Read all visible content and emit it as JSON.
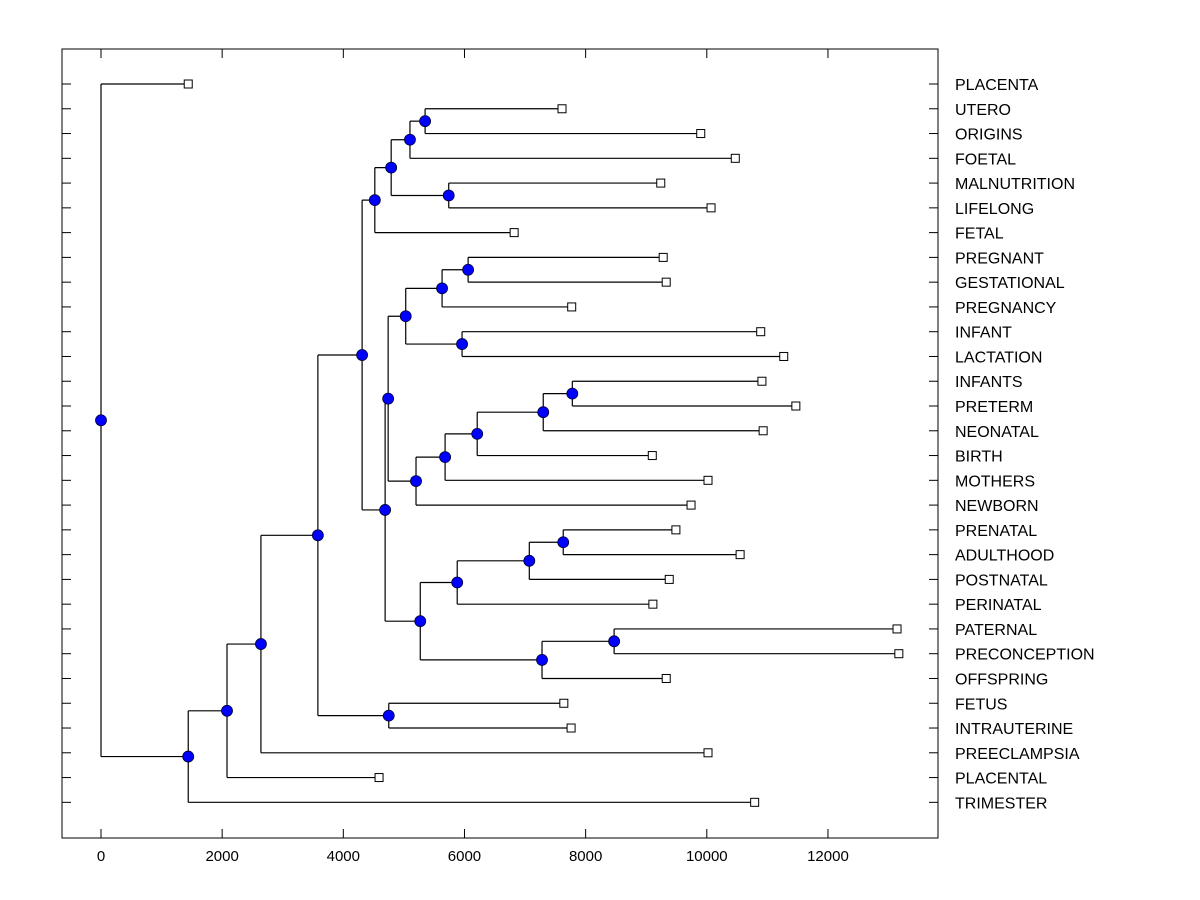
{
  "chart_data": {
    "type": "dendrogram",
    "title": "",
    "xlabel": "",
    "ylabel": "",
    "xlim": [
      -650,
      13800
    ],
    "x_ticks": [
      0,
      2000,
      4000,
      6000,
      8000,
      10000,
      12000
    ],
    "x_tick_labels": [
      "0",
      "2000",
      "4000",
      "6000",
      "8000",
      "10000",
      "12000"
    ],
    "orientation": "horizontal",
    "leaf_label_position": "right",
    "node_color": "#0000ff",
    "leaf_marker": "open-square",
    "leaves": [
      {
        "label": "PLACENTA",
        "value": 1440
      },
      {
        "label": "UTERO",
        "value": 7610
      },
      {
        "label": "ORIGINS",
        "value": 9900
      },
      {
        "label": "FOETAL",
        "value": 10470
      },
      {
        "label": "MALNUTRITION",
        "value": 9240
      },
      {
        "label": "LIFELONG",
        "value": 10070
      },
      {
        "label": "FETAL",
        "value": 6820
      },
      {
        "label": "PREGNANT",
        "value": 9280
      },
      {
        "label": "GESTATIONAL",
        "value": 9330
      },
      {
        "label": "PREGNANCY",
        "value": 7770
      },
      {
        "label": "INFANT",
        "value": 10890
      },
      {
        "label": "LACTATION",
        "value": 11270
      },
      {
        "label": "INFANTS",
        "value": 10910
      },
      {
        "label": "PRETERM",
        "value": 11470
      },
      {
        "label": "NEONATAL",
        "value": 10930
      },
      {
        "label": "BIRTH",
        "value": 9100
      },
      {
        "label": "MOTHERS",
        "value": 10020
      },
      {
        "label": "NEWBORN",
        "value": 9740
      },
      {
        "label": "PRENATAL",
        "value": 9490
      },
      {
        "label": "ADULTHOOD",
        "value": 10550
      },
      {
        "label": "POSTNATAL",
        "value": 9380
      },
      {
        "label": "PERINATAL",
        "value": 9110
      },
      {
        "label": "PATERNAL",
        "value": 13140
      },
      {
        "label": "PRECONCEPTION",
        "value": 13170
      },
      {
        "label": "OFFSPRING",
        "value": 9330
      },
      {
        "label": "FETUS",
        "value": 7640
      },
      {
        "label": "INTRAUTERINE",
        "value": 7760
      },
      {
        "label": "PREECLAMPSIA",
        "value": 10020
      },
      {
        "label": "PLACENTAL",
        "value": 4590
      },
      {
        "label": "TRIMESTER",
        "value": 10790
      }
    ],
    "tree": {
      "value": 0,
      "children": [
        {
          "leaf": "PLACENTA"
        },
        {
          "value": 1440,
          "children": [
            {
              "value": 2080,
              "children": [
                {
                  "value": 2640,
                  "children": [
                    {
                      "value": 3580,
                      "children": [
                        {
                          "value": 4310,
                          "children": [
                            {
                              "value": 4520,
                              "children": [
                                {
                                  "value": 4790,
                                  "children": [
                                    {
                                      "value": 5100,
                                      "children": [
                                        {
                                          "value": 5350,
                                          "children": [
                                            {
                                              "leaf": "UTERO"
                                            },
                                            {
                                              "leaf": "ORIGINS"
                                            }
                                          ]
                                        },
                                        {
                                          "leaf": "FOETAL"
                                        }
                                      ]
                                    },
                                    {
                                      "value": 5740,
                                      "children": [
                                        {
                                          "leaf": "MALNUTRITION"
                                        },
                                        {
                                          "leaf": "LIFELONG"
                                        }
                                      ]
                                    }
                                  ]
                                },
                                {
                                  "leaf": "FETAL"
                                }
                              ]
                            },
                            {
                              "value": 4690,
                              "children": [
                                {
                                  "value": 4740,
                                  "children": [
                                    {
                                      "value": 5030,
                                      "children": [
                                        {
                                          "value": 5630,
                                          "children": [
                                            {
                                              "value": 6060,
                                              "children": [
                                                {
                                                  "leaf": "PREGNANT"
                                                },
                                                {
                                                  "leaf": "GESTATIONAL"
                                                }
                                              ]
                                            },
                                            {
                                              "leaf": "PREGNANCY"
                                            }
                                          ]
                                        },
                                        {
                                          "value": 5960,
                                          "children": [
                                            {
                                              "leaf": "INFANT"
                                            },
                                            {
                                              "leaf": "LACTATION"
                                            }
                                          ]
                                        }
                                      ]
                                    },
                                    {
                                      "value": 5200,
                                      "children": [
                                        {
                                          "value": 5680,
                                          "children": [
                                            {
                                              "value": 6210,
                                              "children": [
                                                {
                                                  "value": 7300,
                                                  "children": [
                                                    {
                                                      "value": 7780,
                                                      "children": [
                                                        {
                                                          "leaf": "INFANTS"
                                                        },
                                                        {
                                                          "leaf": "PRETERM"
                                                        }
                                                      ]
                                                    },
                                                    {
                                                      "leaf": "NEONATAL"
                                                    }
                                                  ]
                                                },
                                                {
                                                  "leaf": "BIRTH"
                                                }
                                              ]
                                            },
                                            {
                                              "leaf": "MOTHERS"
                                            }
                                          ]
                                        },
                                        {
                                          "leaf": "NEWBORN"
                                        }
                                      ]
                                    }
                                  ]
                                },
                                {
                                  "value": 5270,
                                  "children": [
                                    {
                                      "value": 5880,
                                      "children": [
                                        {
                                          "value": 7070,
                                          "children": [
                                            {
                                              "value": 7630,
                                              "children": [
                                                {
                                                  "leaf": "PRENATAL"
                                                },
                                                {
                                                  "leaf": "ADULTHOOD"
                                                }
                                              ]
                                            },
                                            {
                                              "leaf": "POSTNATAL"
                                            }
                                          ]
                                        },
                                        {
                                          "leaf": "PERINATAL"
                                        }
                                      ]
                                    },
                                    {
                                      "value": 7280,
                                      "children": [
                                        {
                                          "value": 8470,
                                          "children": [
                                            {
                                              "leaf": "PATERNAL"
                                            },
                                            {
                                              "leaf": "PRECONCEPTION"
                                            }
                                          ]
                                        },
                                        {
                                          "leaf": "OFFSPRING"
                                        }
                                      ]
                                    }
                                  ]
                                }
                              ]
                            }
                          ]
                        },
                        {
                          "value": 4750,
                          "children": [
                            {
                              "leaf": "FETUS"
                            },
                            {
                              "leaf": "INTRAUTERINE"
                            }
                          ]
                        }
                      ]
                    },
                    {
                      "leaf": "PREECLAMPSIA"
                    }
                  ]
                },
                {
                  "leaf": "PLACENTAL"
                }
              ]
            },
            {
              "leaf": "TRIMESTER"
            }
          ]
        }
      ]
    }
  }
}
